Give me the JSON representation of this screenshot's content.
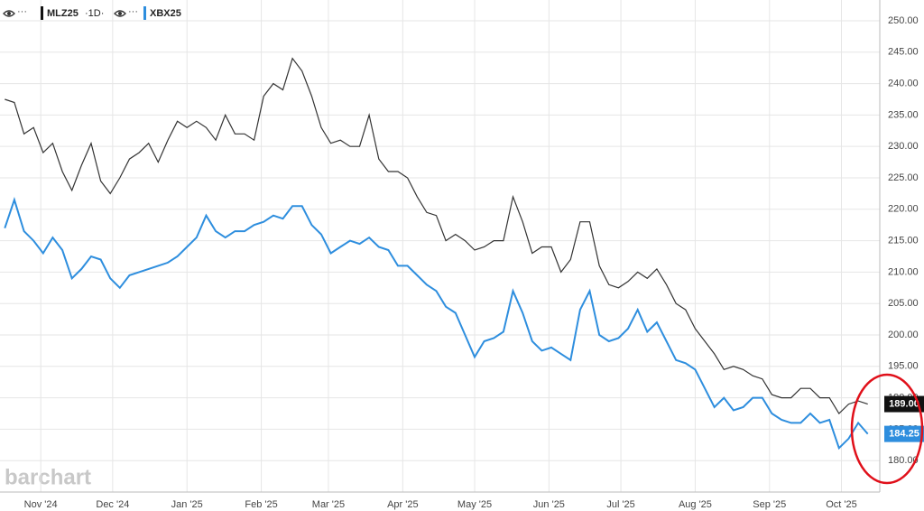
{
  "chart_data": {
    "type": "line",
    "legend_menu": "···",
    "interval": "·1D·",
    "watermark": "barchart",
    "x": [
      -15,
      -11,
      -7,
      -3,
      1,
      5,
      9,
      13,
      17,
      21,
      25,
      29,
      33,
      37,
      41,
      45,
      49,
      53,
      57,
      61,
      65,
      69,
      73,
      77,
      81,
      85,
      89,
      93,
      97,
      101,
      105,
      109,
      113,
      117,
      121,
      125,
      129,
      133,
      137,
      141,
      145,
      149,
      153,
      157,
      161,
      165,
      169,
      173,
      177,
      181,
      185,
      189,
      193,
      197,
      201,
      205,
      209,
      213,
      217,
      221,
      225,
      229,
      233,
      237,
      241,
      245,
      249,
      253,
      257,
      261,
      265,
      269,
      273,
      277,
      281,
      285,
      289,
      293,
      297,
      301,
      305,
      309,
      313,
      317,
      321,
      325,
      329,
      333,
      337,
      341,
      345
    ],
    "series": [
      {
        "name": "MLZ25",
        "color": "#333333",
        "label_color": "#111111",
        "price_label": "189.00",
        "values": [
          237.5,
          237,
          232,
          233,
          229,
          230.5,
          226,
          223,
          227,
          230.5,
          224.5,
          222.5,
          225,
          228,
          229,
          230.5,
          227.5,
          231,
          234,
          233,
          234,
          233,
          231,
          235,
          232,
          232,
          231,
          238,
          240,
          239,
          244,
          242,
          238,
          233,
          230.5,
          231,
          230,
          230,
          235,
          228,
          226,
          226,
          225,
          222,
          219.5,
          219,
          215,
          216,
          215,
          213.5,
          214,
          215,
          215,
          222,
          218,
          213,
          214,
          214,
          210,
          212,
          218,
          218,
          211,
          208,
          207.5,
          208.5,
          210,
          209,
          210.5,
          208,
          205,
          204,
          201,
          199,
          197,
          194.5,
          195,
          194.5,
          193.5,
          193,
          190.5,
          190,
          190,
          191.5,
          191.5,
          190,
          190,
          187.5,
          189,
          189.5,
          189
        ]
      },
      {
        "name": "XBX25",
        "color": "#2e8ede",
        "label_color": "#2e8ede",
        "price_label": "184.25",
        "values": [
          217,
          221.5,
          216.5,
          215,
          213,
          215.5,
          213.5,
          209,
          210.5,
          212.5,
          212,
          209,
          207.5,
          209.5,
          210,
          210.5,
          211,
          211.5,
          212.5,
          214,
          215.5,
          219,
          216.5,
          215.5,
          216.5,
          216.5,
          217.5,
          218,
          219,
          218.5,
          220.5,
          220.5,
          217.5,
          216,
          213,
          214,
          215,
          214.5,
          215.5,
          214,
          213.5,
          211,
          211,
          209.5,
          208,
          207,
          204.5,
          203.5,
          200,
          196.5,
          199,
          199.5,
          200.5,
          207,
          203.5,
          199,
          197.5,
          198,
          197,
          196,
          204,
          207,
          200,
          199,
          199.5,
          201,
          204,
          200.5,
          202,
          199,
          196,
          195.5,
          194.5,
          191.5,
          188.5,
          190,
          188,
          188.5,
          190,
          190,
          187.5,
          186.5,
          186,
          186,
          187.5,
          186,
          186.5,
          182,
          183.5,
          186,
          184.25
        ]
      }
    ],
    "xlim": [
      -17,
      350
    ],
    "xticks": [
      {
        "value": 0,
        "label": "Nov '24"
      },
      {
        "value": 30,
        "label": "Dec '24"
      },
      {
        "value": 61,
        "label": "Jan '25"
      },
      {
        "value": 92,
        "label": "Feb '25"
      },
      {
        "value": 120,
        "label": "Mar '25"
      },
      {
        "value": 151,
        "label": "Apr '25"
      },
      {
        "value": 181,
        "label": "May '25"
      },
      {
        "value": 212,
        "label": "Jun '25"
      },
      {
        "value": 242,
        "label": "Jul '25"
      },
      {
        "value": 273,
        "label": "Aug '25"
      },
      {
        "value": 304,
        "label": "Sep '25"
      },
      {
        "value": 334,
        "label": "Oct '25"
      }
    ],
    "ylim": [
      175,
      253.3
    ],
    "yticks": [
      {
        "value": 180,
        "label": "180.00"
      },
      {
        "value": 185,
        "label": "185.00"
      },
      {
        "value": 190,
        "label": "190.00"
      },
      {
        "value": 195,
        "label": "195.00"
      },
      {
        "value": 200,
        "label": "200.00"
      },
      {
        "value": 205,
        "label": "205.00"
      },
      {
        "value": 210,
        "label": "210.00"
      },
      {
        "value": 215,
        "label": "215.00"
      },
      {
        "value": 220,
        "label": "220.00"
      },
      {
        "value": 225,
        "label": "225.00"
      },
      {
        "value": 230,
        "label": "230.00"
      },
      {
        "value": 235,
        "label": "235.00"
      },
      {
        "value": 240,
        "label": "240.00"
      },
      {
        "value": 245,
        "label": "245.00"
      },
      {
        "value": 250,
        "label": "250.00"
      }
    ],
    "grid": true
  }
}
